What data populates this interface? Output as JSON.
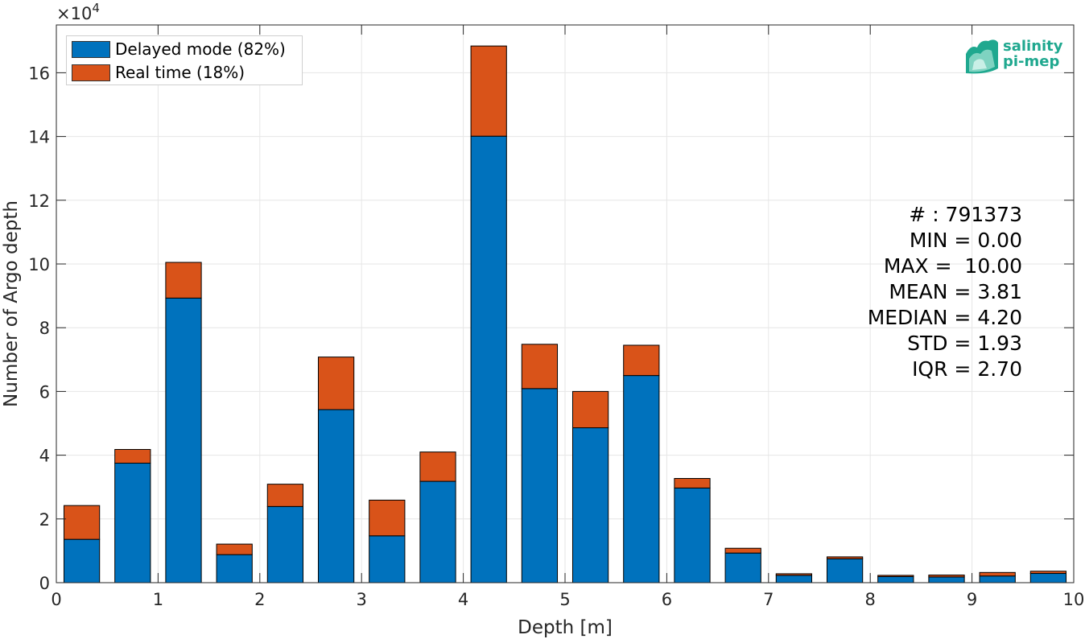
{
  "chart_data": {
    "type": "bar",
    "stacked": true,
    "x": [
      0.25,
      0.75,
      1.25,
      1.75,
      2.25,
      2.75,
      3.25,
      3.75,
      4.25,
      4.75,
      5.25,
      5.75,
      6.25,
      6.75,
      7.25,
      7.75,
      8.25,
      8.75,
      9.25,
      9.75
    ],
    "series": [
      {
        "name": "Delayed mode (82%)",
        "color": "#0072bd",
        "values": [
          13600,
          37500,
          89300,
          8800,
          23900,
          54300,
          14700,
          31800,
          140100,
          60900,
          48600,
          65000,
          29700,
          9300,
          2300,
          7500,
          1900,
          1800,
          2100,
          2900
        ]
      },
      {
        "name": "Real time (18%)",
        "color": "#d95319",
        "values": [
          10600,
          4300,
          11200,
          3300,
          7000,
          16500,
          11200,
          9200,
          28300,
          13900,
          11400,
          9500,
          3000,
          1500,
          500,
          600,
          400,
          600,
          1100,
          700
        ]
      }
    ],
    "xlabel": "Depth [m]",
    "ylabel": "Number of Argo depth",
    "y_exponent_label": "×10",
    "y_exponent_power": "4",
    "xlim": [
      0,
      10
    ],
    "ylim": [
      0,
      175000
    ],
    "xticks": [
      "0",
      "1",
      "2",
      "3",
      "4",
      "5",
      "6",
      "7",
      "8",
      "9",
      "10"
    ],
    "yticks": [
      "0",
      "2",
      "4",
      "6",
      "8",
      "10",
      "12",
      "14",
      "16"
    ],
    "grid": true,
    "legend_position": "top-left"
  },
  "stats": {
    "count": "# : 791373",
    "min": "MIN = 0.00",
    "max": "MAX =  10.00",
    "mean": "MEAN = 3.81",
    "median": "MEDIAN = 4.20",
    "std": "STD = 1.93",
    "iqr": "IQR = 2.70"
  },
  "logo": {
    "line1": "salinity",
    "line2": "pi-mep"
  }
}
